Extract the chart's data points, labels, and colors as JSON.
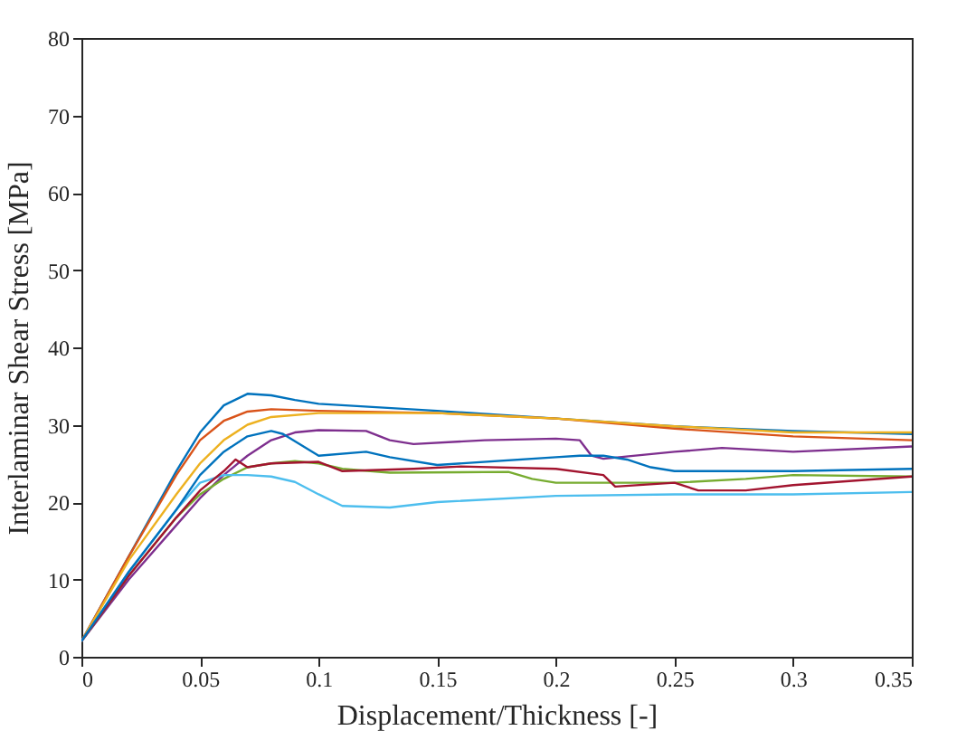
{
  "chart_data": {
    "type": "line",
    "xlabel": "Displacement/Thickness [-]",
    "ylabel": "Interlaminar Shear Stress [MPa]",
    "xlim": [
      0,
      0.35
    ],
    "xticks": [
      0,
      0.05,
      0.1,
      0.15,
      0.2,
      0.25,
      0.3,
      0.35
    ],
    "ylim": [
      0,
      80
    ],
    "yticks": [
      0,
      10,
      20,
      30,
      40,
      50,
      60,
      70,
      80
    ],
    "grid": false,
    "marker": "none",
    "line_style": "solid",
    "series": [
      {
        "color": "#0072bd",
        "x": [
          0,
          0.02,
          0.04,
          0.05,
          0.06,
          0.07,
          0.08,
          0.09,
          0.1,
          0.15,
          0.2,
          0.25,
          0.3,
          0.35
        ],
        "values": [
          2,
          13,
          24,
          29,
          32.5,
          34,
          33.8,
          33.2,
          32.7,
          31.8,
          30.8,
          29.8,
          29.2,
          28.8
        ]
      },
      {
        "color": "#d95319",
        "x": [
          0,
          0.02,
          0.04,
          0.05,
          0.06,
          0.07,
          0.08,
          0.1,
          0.15,
          0.2,
          0.25,
          0.3,
          0.35
        ],
        "values": [
          2,
          13,
          23.5,
          28,
          30.5,
          31.7,
          32,
          31.8,
          31.5,
          30.8,
          29.5,
          28.5,
          28
        ]
      },
      {
        "color": "#edb120",
        "x": [
          0,
          0.02,
          0.04,
          0.05,
          0.06,
          0.07,
          0.08,
          0.1,
          0.15,
          0.2,
          0.25,
          0.3,
          0.35
        ],
        "values": [
          2,
          12.5,
          21,
          25,
          28,
          30,
          31,
          31.5,
          31.5,
          30.8,
          29.8,
          29,
          29
        ]
      },
      {
        "color": "#7e2f8e",
        "x": [
          0,
          0.02,
          0.04,
          0.05,
          0.06,
          0.07,
          0.08,
          0.09,
          0.1,
          0.12,
          0.13,
          0.14,
          0.17,
          0.2,
          0.21,
          0.215,
          0.22,
          0.25,
          0.27,
          0.3,
          0.35
        ],
        "values": [
          2,
          10,
          17,
          20.5,
          23.5,
          26,
          28,
          29,
          29.3,
          29.2,
          28,
          27.5,
          28,
          28.2,
          28,
          26,
          25.6,
          26.5,
          27,
          26.5,
          27.2
        ]
      },
      {
        "color": "#77ac30",
        "x": [
          0,
          0.02,
          0.04,
          0.05,
          0.06,
          0.07,
          0.08,
          0.09,
          0.1,
          0.11,
          0.13,
          0.18,
          0.19,
          0.2,
          0.25,
          0.28,
          0.3,
          0.35
        ],
        "values": [
          2,
          10.5,
          18,
          21,
          23,
          24.5,
          25,
          25.3,
          25,
          24.3,
          23.8,
          23.9,
          23,
          22.5,
          22.5,
          23,
          23.5,
          23.3
        ]
      },
      {
        "color": "#4dbeee",
        "x": [
          0,
          0.02,
          0.04,
          0.05,
          0.06,
          0.07,
          0.08,
          0.09,
          0.1,
          0.11,
          0.13,
          0.15,
          0.2,
          0.25,
          0.3,
          0.35
        ],
        "values": [
          2,
          11,
          19,
          22.5,
          23.5,
          23.5,
          23.3,
          22.6,
          21,
          19.5,
          19.3,
          20,
          20.8,
          21,
          21,
          21.3
        ]
      },
      {
        "color": "#a2142f",
        "x": [
          0,
          0.02,
          0.04,
          0.05,
          0.06,
          0.065,
          0.07,
          0.08,
          0.1,
          0.11,
          0.14,
          0.16,
          0.2,
          0.22,
          0.225,
          0.25,
          0.26,
          0.28,
          0.3,
          0.35
        ],
        "values": [
          2,
          10.5,
          18,
          21.5,
          24,
          25.5,
          24.5,
          25,
          25.2,
          24,
          24.3,
          24.6,
          24.3,
          23.5,
          22,
          22.5,
          21.5,
          21.5,
          22.2,
          23.3
        ]
      },
      {
        "color": "#0072bd",
        "x": [
          0,
          0.02,
          0.04,
          0.05,
          0.06,
          0.07,
          0.08,
          0.085,
          0.1,
          0.12,
          0.13,
          0.15,
          0.2,
          0.21,
          0.22,
          0.23,
          0.24,
          0.25,
          0.3,
          0.35
        ],
        "values": [
          2,
          11,
          19,
          23.5,
          26.5,
          28.5,
          29.2,
          28.8,
          26,
          26.5,
          25.8,
          24.8,
          25.8,
          26,
          26,
          25.5,
          24.5,
          24,
          24,
          24.3
        ]
      }
    ]
  }
}
